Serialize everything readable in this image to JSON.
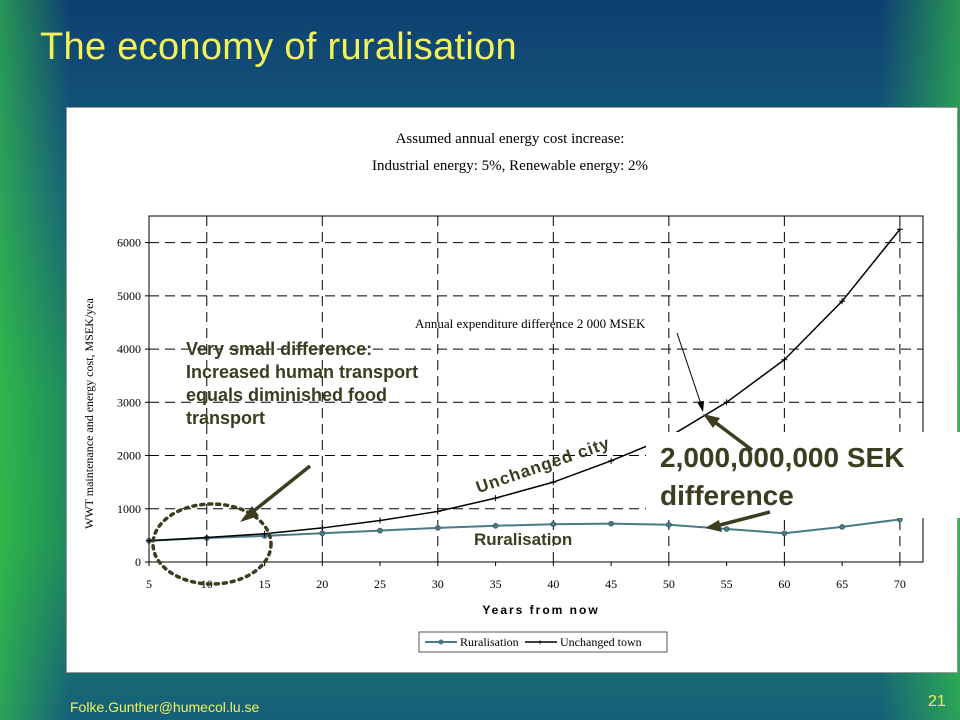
{
  "slide": {
    "title": "The economy of ruralisation",
    "footer_email": "Folke.Gunther@humecol.lu.se",
    "page_number": "21"
  },
  "annotations": {
    "left_note": "Very small difference:\nIncreased human transport equals diminished food transport",
    "rural_label": "Ruralisation",
    "city_label": "Unchanged city",
    "difference_line1": "2,000,000,000 SEK",
    "difference_line2": "difference"
  },
  "colors": {
    "title": "#f2f25a",
    "ruralisation_line": "#4a7a86",
    "unchanged_line": "#000000",
    "annotation_text": "#3c3c20",
    "arrow": "#3c3c20"
  },
  "chart_data": {
    "type": "line",
    "title": "Assumed annual energy cost increase:",
    "subtitle": "Industrial energy: 5%, Renewable energy: 2%",
    "inner_annotation": "Annual expenditure difference 2 000 MSEK",
    "xlabel": "Years from now",
    "ylabel": "WWT maintenance and energy cost, MSEK/yea",
    "x": [
      5,
      10,
      15,
      20,
      25,
      30,
      35,
      40,
      45,
      50,
      55,
      60,
      65,
      70
    ],
    "xlim": [
      5,
      72
    ],
    "ylim": [
      0,
      6500
    ],
    "yticks": [
      0,
      1000,
      2000,
      3000,
      4000,
      5000,
      6000
    ],
    "grid": true,
    "legend": "bottom",
    "series": [
      {
        "name": "Ruralisation",
        "values": [
          400,
          450,
          490,
          540,
          590,
          640,
          680,
          710,
          720,
          700,
          620,
          540,
          660,
          800
        ]
      },
      {
        "name": "Unchanged town",
        "values": [
          400,
          460,
          530,
          640,
          780,
          950,
          1200,
          1500,
          1900,
          2350,
          3000,
          3800,
          4900,
          6250
        ]
      }
    ]
  }
}
